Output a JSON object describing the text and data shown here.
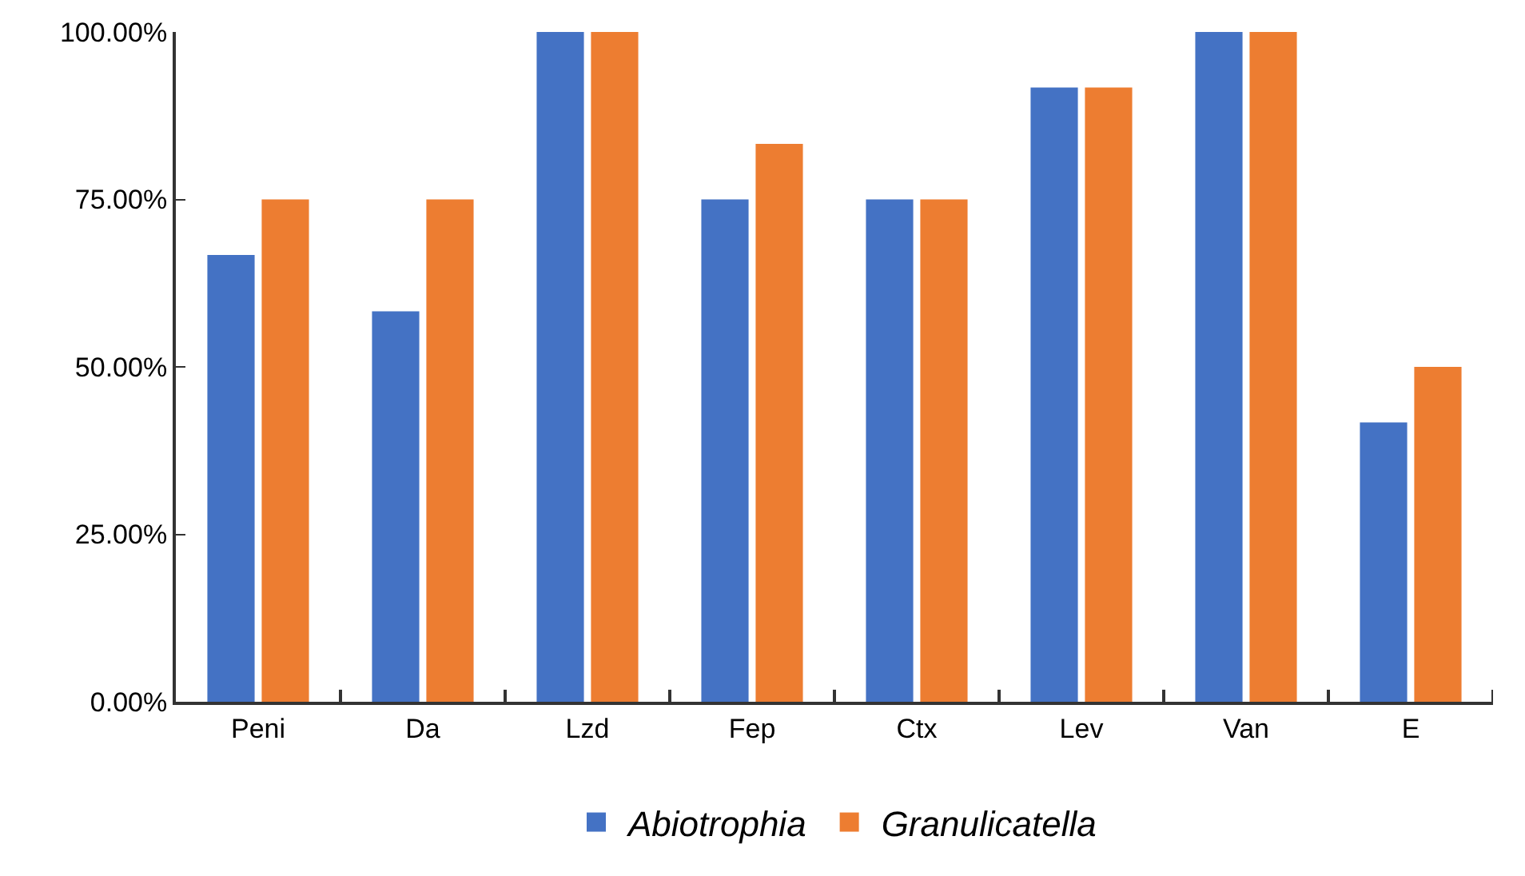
{
  "chart_data": {
    "type": "bar",
    "categories": [
      "Peni",
      "Da",
      "Lzd",
      "Fep",
      "Ctx",
      "Lev",
      "Van",
      "E"
    ],
    "series": [
      {
        "name": "Abiotrophia",
        "color": "#4472c4",
        "values": [
          66.7,
          58.3,
          100,
          75,
          75,
          91.7,
          100,
          41.7
        ]
      },
      {
        "name": "Granulicatella",
        "color": "#ed7d31",
        "values": [
          75,
          75,
          100,
          83.3,
          75,
          91.7,
          100,
          50
        ]
      }
    ],
    "ylim": [
      0,
      100
    ],
    "yticks": [
      {
        "value": 0,
        "label": "0.00%"
      },
      {
        "value": 25,
        "label": "25.00%"
      },
      {
        "value": 50,
        "label": "50.00%"
      },
      {
        "value": 75,
        "label": "75.00%"
      },
      {
        "value": 100,
        "label": "100.00%"
      }
    ],
    "grid": false,
    "legend": "bottom"
  }
}
